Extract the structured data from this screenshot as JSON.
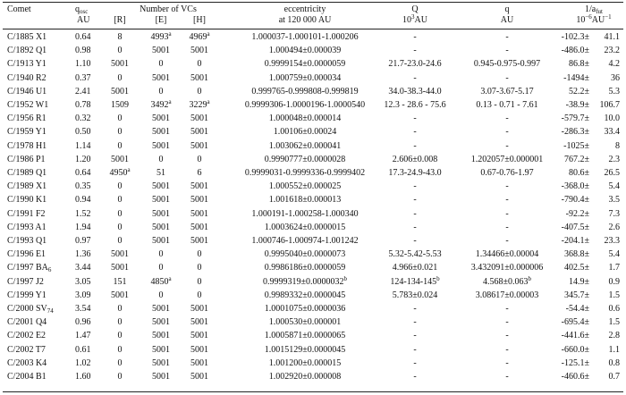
{
  "header": {
    "comet": "Comet",
    "qosc_main": "q",
    "qosc_sub": "osc",
    "qosc_unit": "AU",
    "num_vcs": "Number of VCs",
    "r": "[R]",
    "e": "[E]",
    "h": "[H]",
    "ecc": "eccentricity",
    "ecc_at": "at 120 000 AU",
    "Q": "Q",
    "Q_unit_base": "10",
    "Q_unit_exp": "3",
    "Q_unit": "AU",
    "q": "q",
    "q_unit": "AU",
    "afut_main": "1/a",
    "afut_sub": "fut",
    "afut_unit_base": "10",
    "afut_unit_exp": "−6",
    "afut_unit": "AU",
    "afut_unit_exp2": "−1"
  },
  "rows": [
    {
      "comet": "C/1885 X1",
      "qosc": "0.64",
      "r": "8",
      "e": "4993",
      "e_sup": "a",
      "h": "4969",
      "h_sup": "a",
      "ecc": "1.000037-1.000101-1.000206",
      "ecc_sup": "",
      "Q": "-",
      "Q_sup": "",
      "q": "-",
      "q_sup": "",
      "a_val": "-102.3",
      "a_err": "41.1"
    },
    {
      "comet": "C/1892 Q1",
      "qosc": "0.98",
      "r": "0",
      "e": "5001",
      "e_sup": "",
      "h": "5001",
      "h_sup": "",
      "ecc": "1.000494±0.000039",
      "ecc_sup": "",
      "Q": "-",
      "Q_sup": "",
      "q": "-",
      "q_sup": "",
      "a_val": "-486.0",
      "a_err": "23.2"
    },
    {
      "comet": "C/1913 Y1",
      "qosc": "1.10",
      "r": "5001",
      "e": "0",
      "e_sup": "",
      "h": "0",
      "h_sup": "",
      "ecc": "0.9999154±0.0000059",
      "ecc_sup": "",
      "Q": "21.7-23.0-24.6",
      "Q_sup": "",
      "q": "0.945-0.975-0.997",
      "q_sup": "",
      "a_val": "86.8",
      "a_err": "4.2"
    },
    {
      "comet": "C/1940 R2",
      "qosc": "0.37",
      "r": "0",
      "e": "5001",
      "e_sup": "",
      "h": "5001",
      "h_sup": "",
      "ecc": "1.000759±0.000034",
      "ecc_sup": "",
      "Q": "-",
      "Q_sup": "",
      "q": "-",
      "q_sup": "",
      "a_val": "-1494",
      "a_err": "36"
    },
    {
      "comet": "C/1946 U1",
      "qosc": "2.41",
      "r": "5001",
      "e": "0",
      "e_sup": "",
      "h": "0",
      "h_sup": "",
      "ecc": "0.999765-0.999808-0.999819",
      "ecc_sup": "",
      "Q": "34.0-38.3-44.0",
      "Q_sup": "",
      "q": "3.07-3.67-5.17",
      "q_sup": "",
      "a_val": "52.2",
      "a_err": "5.3"
    },
    {
      "comet": "C/1952 W1",
      "qosc": "0.78",
      "r": "1509",
      "e": "3492",
      "e_sup": "a",
      "h": "3229",
      "h_sup": "a",
      "ecc": "0.9999306-1.0000196-1.0000540",
      "ecc_sup": "",
      "Q": "12.3 - 28.6 - 75.6",
      "Q_sup": "",
      "q": "0.13 - 0.71 - 7.61",
      "q_sup": "",
      "a_val": "-38.9",
      "a_err": "106.7"
    },
    {
      "comet": "C/1956 R1",
      "qosc": "0.32",
      "r": "0",
      "e": "5001",
      "e_sup": "",
      "h": "5001",
      "h_sup": "",
      "ecc": "1.000048±0.000014",
      "ecc_sup": "",
      "Q": "-",
      "Q_sup": "",
      "q": "-",
      "q_sup": "",
      "a_val": "-579.7",
      "a_err": "10.0"
    },
    {
      "comet": "C/1959 Y1",
      "qosc": "0.50",
      "r": "0",
      "e": "5001",
      "e_sup": "",
      "h": "5001",
      "h_sup": "",
      "ecc": "1.00106±0.00024",
      "ecc_sup": "",
      "Q": "-",
      "Q_sup": "",
      "q": "-",
      "q_sup": "",
      "a_val": "-286.3",
      "a_err": "33.4"
    },
    {
      "comet": "C/1978 H1",
      "qosc": "1.14",
      "r": "0",
      "e": "5001",
      "e_sup": "",
      "h": "5001",
      "h_sup": "",
      "ecc": "1.003062±0.000041",
      "ecc_sup": "",
      "Q": "-",
      "Q_sup": "",
      "q": "-",
      "q_sup": "",
      "a_val": "-1025",
      "a_err": "8"
    },
    {
      "comet": "C/1986 P1",
      "qosc": "1.20",
      "r": "5001",
      "e": "0",
      "e_sup": "",
      "h": "0",
      "h_sup": "",
      "ecc": "0.9990777±0.0000028",
      "ecc_sup": "",
      "Q": "2.606±0.008",
      "Q_sup": "",
      "q": "1.202057±0.000001",
      "q_sup": "",
      "a_val": "767.2",
      "a_err": "2.3"
    },
    {
      "comet": "C/1989 Q1",
      "qosc": "0.64",
      "r": "4950",
      "e": "51",
      "e_sup": "",
      "h": "6",
      "h_sup": "",
      "r_sup": "a",
      "ecc": "0.9999031-0.9999336-0.9999402",
      "ecc_sup": "",
      "Q": "17.3-24.9-43.0",
      "Q_sup": "",
      "q": "0.67-0.76-1.97",
      "q_sup": "",
      "a_val": "80.6",
      "a_err": "26.5"
    },
    {
      "comet": "C/1989 X1",
      "qosc": "0.35",
      "r": "0",
      "e": "5001",
      "e_sup": "",
      "h": "5001",
      "h_sup": "",
      "ecc": "1.000552±0.000025",
      "ecc_sup": "",
      "Q": "-",
      "Q_sup": "",
      "q": "-",
      "q_sup": "",
      "a_val": "-368.0",
      "a_err": "5.4"
    },
    {
      "comet": "C/1990 K1",
      "qosc": "0.94",
      "r": "0",
      "e": "5001",
      "e_sup": "",
      "h": "5001",
      "h_sup": "",
      "ecc": "1.001618±0.000013",
      "ecc_sup": "",
      "Q": "-",
      "Q_sup": "",
      "q": "-",
      "q_sup": "",
      "a_val": "-790.4",
      "a_err": "3.5"
    },
    {
      "comet": "C/1991 F2",
      "qosc": "1.52",
      "r": "0",
      "e": "5001",
      "e_sup": "",
      "h": "5001",
      "h_sup": "",
      "ecc": "1.000191-1.000258-1.000340",
      "ecc_sup": "",
      "Q": "-",
      "Q_sup": "",
      "q": "-",
      "q_sup": "",
      "a_val": "-92.2",
      "a_err": "7.3"
    },
    {
      "comet": "C/1993 A1",
      "qosc": "1.94",
      "r": "0",
      "e": "5001",
      "e_sup": "",
      "h": "5001",
      "h_sup": "",
      "ecc": "1.0003624±0.0000015",
      "ecc_sup": "",
      "Q": "-",
      "Q_sup": "",
      "q": "-",
      "q_sup": "",
      "a_val": "-407.5",
      "a_err": "2.6"
    },
    {
      "comet": "C/1993 Q1",
      "qosc": "0.97",
      "r": "0",
      "e": "5001",
      "e_sup": "",
      "h": "5001",
      "h_sup": "",
      "ecc": "1.000746-1.000974-1.001242",
      "ecc_sup": "",
      "Q": "-",
      "Q_sup": "",
      "q": "-",
      "q_sup": "",
      "a_val": "-204.1",
      "a_err": "23.3"
    },
    {
      "comet": "C/1996 E1",
      "qosc": "1.36",
      "r": "5001",
      "e": "0",
      "e_sup": "",
      "h": "0",
      "h_sup": "",
      "ecc": "0.9995040±0.0000073",
      "ecc_sup": "",
      "Q": "5.32-5.42-5.53",
      "Q_sup": "",
      "q": "1.34466±0.00004",
      "q_sup": "",
      "a_val": "368.8",
      "a_err": "5.4"
    },
    {
      "comet": "C/1997 BA",
      "comet_sub": "6",
      "qosc": "3.44",
      "r": "5001",
      "e": "0",
      "e_sup": "",
      "h": "0",
      "h_sup": "",
      "ecc": "0.9986186±0.0000059",
      "ecc_sup": "",
      "Q": "4.966±0.021",
      "Q_sup": "",
      "q": "3.432091±0.000006",
      "q_sup": "",
      "a_val": "402.5",
      "a_err": "1.7"
    },
    {
      "comet": "C/1997 J2",
      "qosc": "3.05",
      "r": "151",
      "e": "4850",
      "e_sup": "a",
      "h": "0",
      "h_sup": "",
      "ecc": "0.9999319±0.0000032",
      "ecc_sup": "b",
      "Q": "124-134-145",
      "Q_sup": "b",
      "q": "4.568±0.063",
      "q_sup": "b",
      "a_val": "14.9",
      "a_err": "0.9"
    },
    {
      "comet": "C/1999 Y1",
      "qosc": "3.09",
      "r": "5001",
      "e": "0",
      "e_sup": "",
      "h": "0",
      "h_sup": "",
      "ecc": "0.9989332±0.0000045",
      "ecc_sup": "",
      "Q": "5.783±0.024",
      "Q_sup": "",
      "q": "3.08617±0.00003",
      "q_sup": "",
      "a_val": "345.7",
      "a_err": "1.5"
    },
    {
      "comet": "C/2000 SV",
      "comet_sub": "74",
      "qosc": "3.54",
      "r": "0",
      "e": "5001",
      "e_sup": "",
      "h": "5001",
      "h_sup": "",
      "ecc": "1.0001075±0.0000036",
      "ecc_sup": "",
      "Q": "-",
      "Q_sup": "",
      "q": "-",
      "q_sup": "",
      "a_val": "-54.4",
      "a_err": "0.6"
    },
    {
      "comet": "C/2001 Q4",
      "qosc": "0.96",
      "r": "0",
      "e": "5001",
      "e_sup": "",
      "h": "5001",
      "h_sup": "",
      "ecc": "1.000530±0.000001",
      "ecc_sup": "",
      "Q": "-",
      "Q_sup": "",
      "q": "-",
      "q_sup": "",
      "a_val": "-695.4",
      "a_err": "1.5"
    },
    {
      "comet": "C/2002 E2",
      "qosc": "1.47",
      "r": "0",
      "e": "5001",
      "e_sup": "",
      "h": "5001",
      "h_sup": "",
      "ecc": "1.0005871±0.0000065",
      "ecc_sup": "",
      "Q": "-",
      "Q_sup": "",
      "q": "-",
      "q_sup": "",
      "a_val": "-441.6",
      "a_err": "2.8"
    },
    {
      "comet": "C/2002 T7",
      "qosc": "0.61",
      "r": "0",
      "e": "5001",
      "e_sup": "",
      "h": "5001",
      "h_sup": "",
      "ecc": "1.0015129±0.0000045",
      "ecc_sup": "",
      "Q": "-",
      "Q_sup": "",
      "q": "-",
      "q_sup": "",
      "a_val": "-660.0",
      "a_err": "1.1"
    },
    {
      "comet": "C/2003 K4",
      "qosc": "1.02",
      "r": "0",
      "e": "5001",
      "e_sup": "",
      "h": "5001",
      "h_sup": "",
      "ecc": "1.001200±0.000015",
      "ecc_sup": "",
      "Q": "-",
      "Q_sup": "",
      "q": "-",
      "q_sup": "",
      "a_val": "-125.1",
      "a_err": "0.8"
    },
    {
      "comet": "C/2004 B1",
      "qosc": "1.60",
      "r": "0",
      "e": "5001",
      "e_sup": "",
      "h": "5001",
      "h_sup": "",
      "ecc": "1.002920±0.000008",
      "ecc_sup": "",
      "Q": "-",
      "Q_sup": "",
      "q": "-",
      "q_sup": "",
      "a_val": "-460.6",
      "a_err": "0.7"
    }
  ]
}
